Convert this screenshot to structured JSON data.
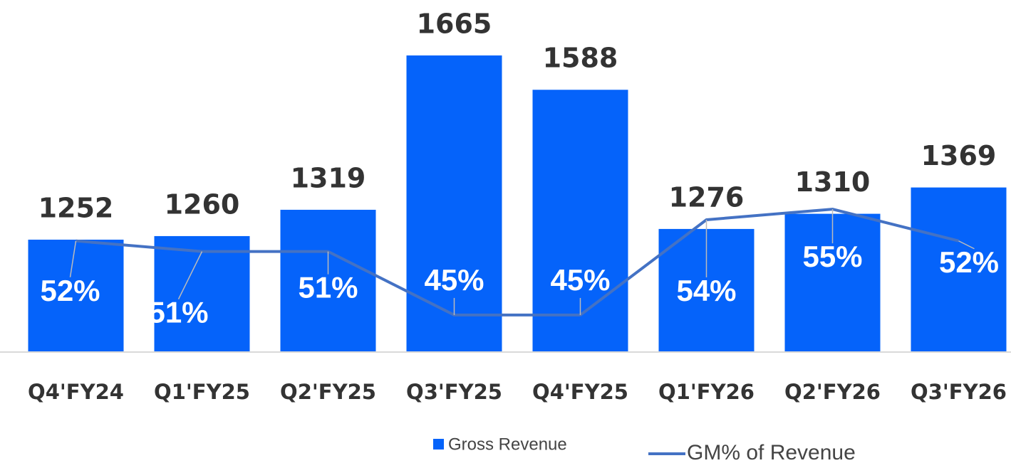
{
  "chart_data": {
    "type": "bar+line",
    "categories": [
      "Q4'FY24",
      "Q1'FY25",
      "Q2'FY25",
      "Q3'FY25",
      "Q4'FY25",
      "Q1'FY26",
      "Q2'FY26",
      "Q3'FY26"
    ],
    "series": [
      {
        "name": "Gross Revenue",
        "type": "bar",
        "color": "#0563fa",
        "values": [
          1252,
          1260,
          1319,
          1665,
          1588,
          1276,
          1310,
          1369
        ]
      },
      {
        "name": "GM% of Revenue",
        "type": "line",
        "axis": "y2",
        "color": "#4472c4",
        "values": [
          52,
          51,
          51,
          45,
          45,
          54,
          55,
          52
        ],
        "value_labels": [
          "52%",
          "51%",
          "51%",
          "45%",
          "45%",
          "54%",
          "55%",
          "52%"
        ]
      }
    ],
    "ylim": [
      1000,
      1700
    ],
    "y2lim": [
      41.5,
      71
    ]
  }
}
